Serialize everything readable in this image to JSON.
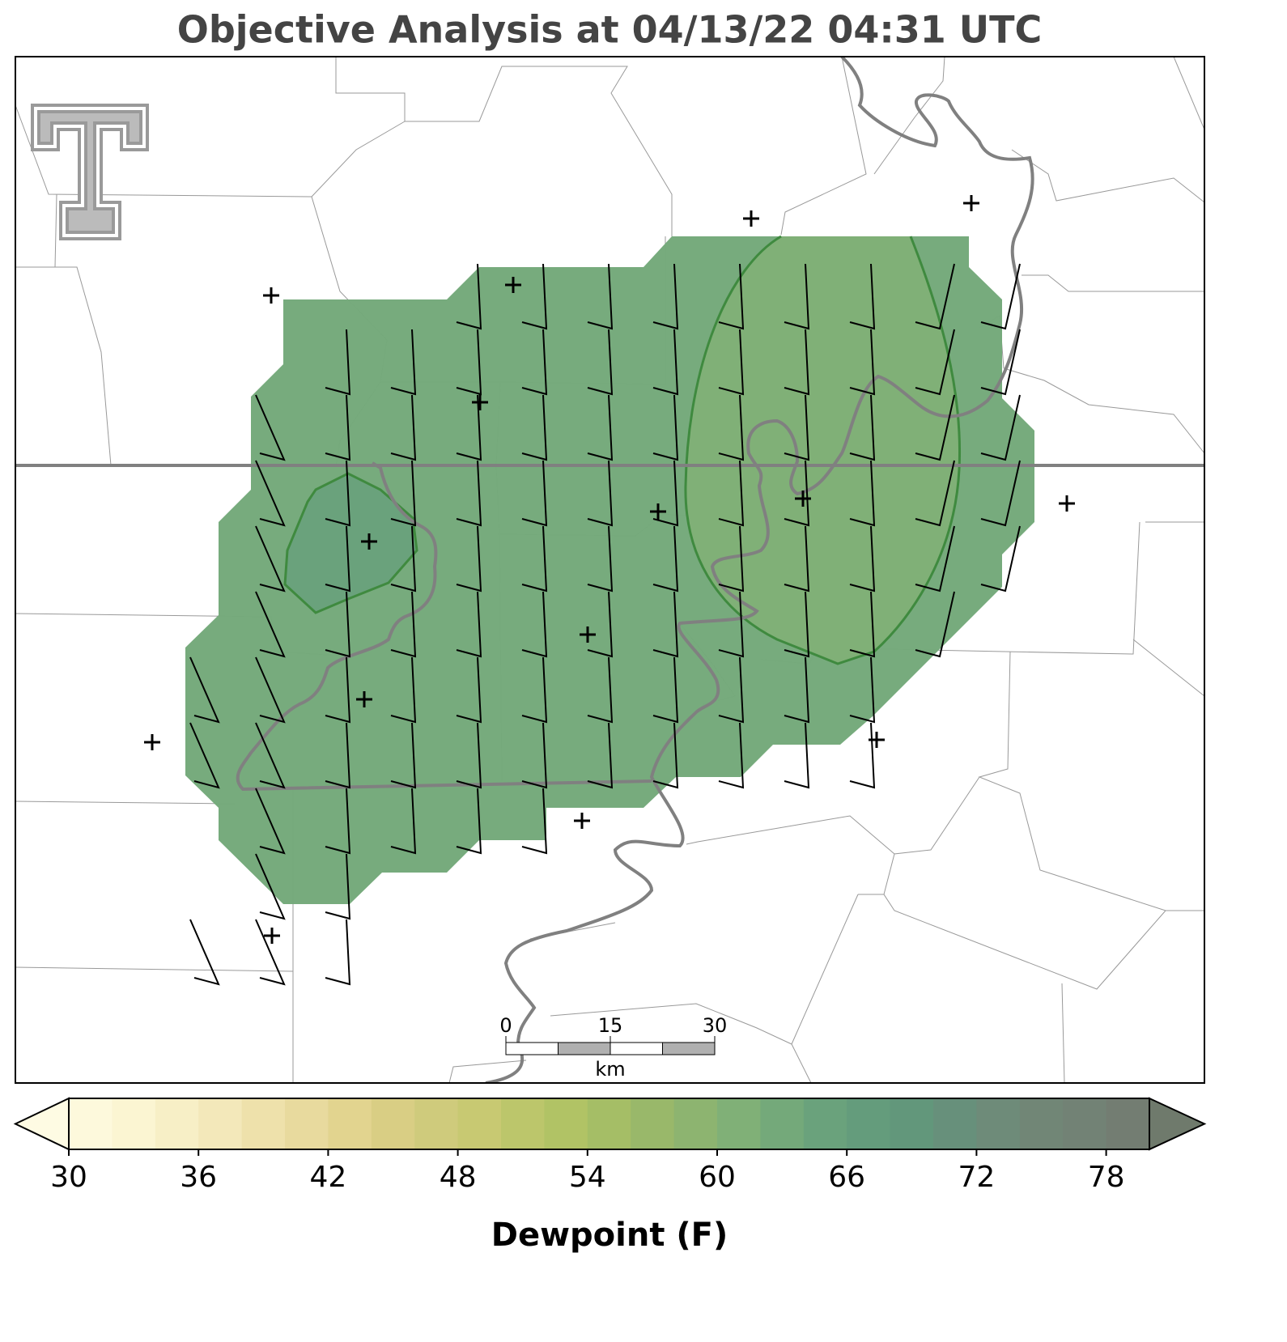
{
  "title": "Objective Analysis at 04/13/22 04:31 UTC",
  "colorbar": {
    "label": "Dewpoint (F)",
    "lim": [
      30,
      80
    ],
    "ticks": [
      30,
      36,
      42,
      48,
      54,
      60,
      66,
      72,
      78
    ],
    "colors": [
      "#fdf9dc",
      "#fbf5d2",
      "#f7efc6",
      "#f3e8ba",
      "#eee1ab",
      "#e8da9e",
      "#e2d48f",
      "#d9ce84",
      "#cfcb7c",
      "#c8c972",
      "#bcc66b",
      "#b1c365",
      "#a5be66",
      "#99b86a",
      "#8db470",
      "#80b077",
      "#74a97a",
      "#6aa27c",
      "#649c7c",
      "#62977b",
      "#67907b",
      "#6e8b79",
      "#718676",
      "#728275",
      "#737d72"
    ],
    "under_color": "#fefbe3",
    "over_color": "#6f7a6c"
  },
  "scale_bar": {
    "ticks": [
      0,
      15,
      30
    ],
    "unit": "km"
  }
}
